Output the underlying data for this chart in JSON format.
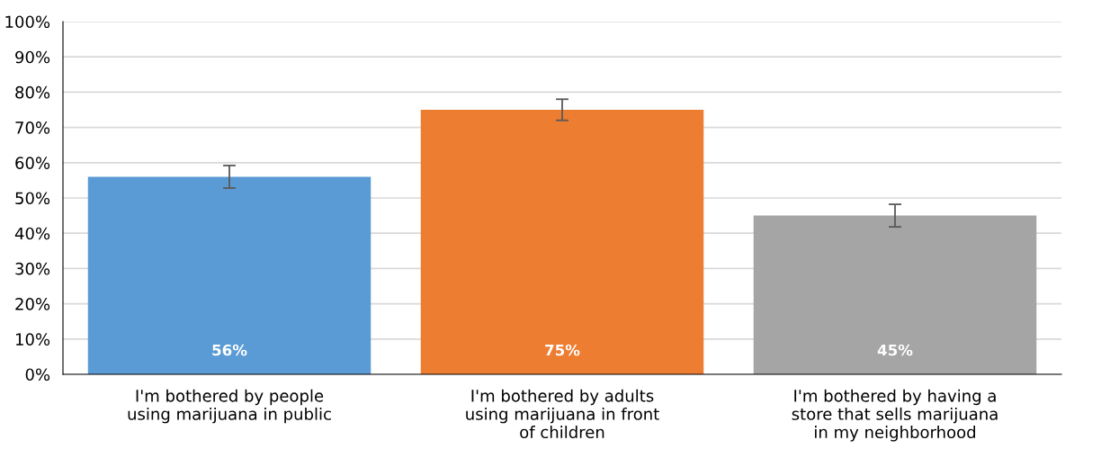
{
  "chart_data": {
    "type": "bar",
    "categories": [
      "I'm bothered by people\nusing marijuana in public",
      "I'm bothered by adults\nusing marijuana in front\nof children",
      "I'm bothered by having a\nstore that sells marijuana\nin my neighborhood"
    ],
    "values": [
      56,
      75,
      45
    ],
    "colors": [
      "#5b9bd5",
      "#ed7d31",
      "#a5a5a5"
    ],
    "errors": [
      3.2,
      3,
      3.2
    ],
    "value_labels": [
      "56%",
      "75%",
      "45%"
    ],
    "ylim": [
      0,
      100
    ],
    "yticks": [
      {
        "value": 0,
        "label": "0%"
      },
      {
        "value": 10,
        "label": "10%"
      },
      {
        "value": 20,
        "label": "20%"
      },
      {
        "value": 30,
        "label": "30%"
      },
      {
        "value": 40,
        "label": "40%"
      },
      {
        "value": 50,
        "label": "50%"
      },
      {
        "value": 60,
        "label": "60%"
      },
      {
        "value": 70,
        "label": "70%"
      },
      {
        "value": 80,
        "label": "80%"
      },
      {
        "value": 90,
        "label": "90%"
      },
      {
        "value": 100,
        "label": "100%"
      }
    ],
    "grid": "y"
  }
}
